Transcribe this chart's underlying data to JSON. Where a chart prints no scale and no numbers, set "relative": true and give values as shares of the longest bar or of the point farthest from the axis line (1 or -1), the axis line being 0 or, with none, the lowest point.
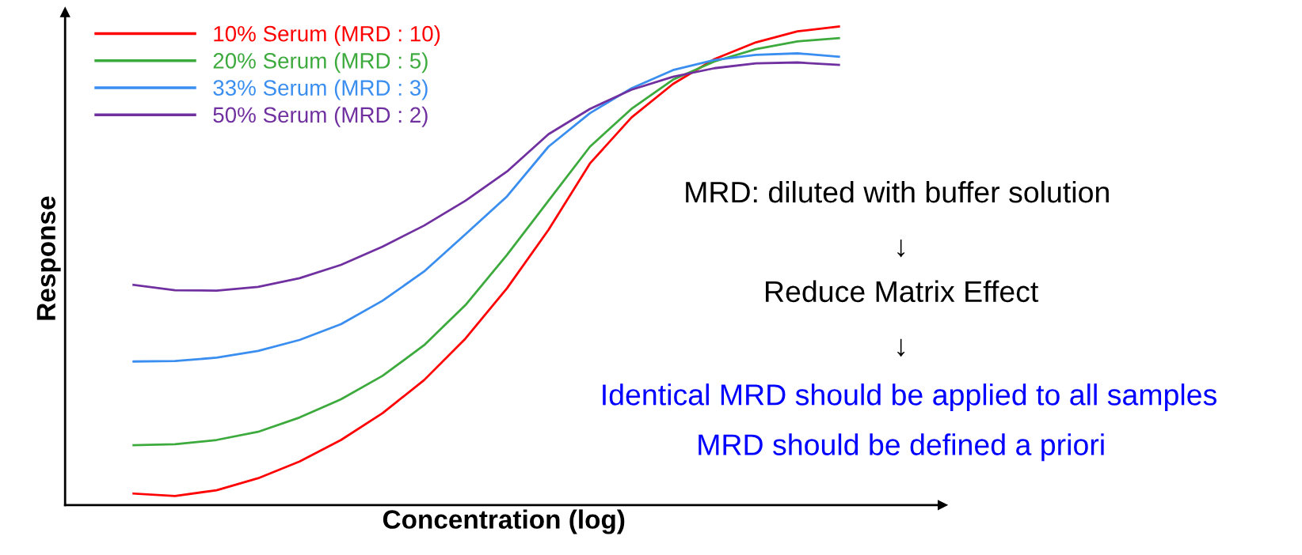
{
  "chart_data": {
    "type": "line",
    "relative": true,
    "xlabel": "Concentration (log)",
    "ylabel": "Response",
    "legend": "top left",
    "marker": "none",
    "line_style": "solid",
    "categories": [
      null,
      null,
      null,
      null,
      null,
      null,
      null,
      null,
      null,
      null,
      null,
      null,
      null,
      null,
      null,
      null,
      null,
      null
    ],
    "series": [
      {
        "name": "10% Serum (MRD : 10)",
        "color": "#ff0000",
        "values": [
          0.024,
          0.019,
          0.031,
          0.056,
          0.091,
          0.136,
          0.192,
          0.261,
          0.348,
          0.453,
          0.575,
          0.714,
          0.81,
          0.88,
          0.932,
          0.967,
          0.99,
          1.0
        ]
      },
      {
        "name": "20% Serum (MRD : 5)",
        "color": "#3daa3d",
        "values": [
          0.125,
          0.127,
          0.136,
          0.153,
          0.183,
          0.221,
          0.27,
          0.334,
          0.418,
          0.523,
          0.636,
          0.749,
          0.828,
          0.889,
          0.927,
          0.953,
          0.969,
          0.976
        ]
      },
      {
        "name": "33% Serum (MRD : 3)",
        "color": "#3a8ef0",
        "values": [
          0.3,
          0.301,
          0.308,
          0.322,
          0.345,
          0.378,
          0.427,
          0.488,
          0.566,
          0.645,
          0.749,
          0.819,
          0.871,
          0.909,
          0.93,
          0.941,
          0.944,
          0.937
        ]
      },
      {
        "name": "50% Serum (MRD : 2)",
        "color": "#7030a0",
        "values": [
          0.46,
          0.449,
          0.448,
          0.456,
          0.474,
          0.502,
          0.54,
          0.584,
          0.636,
          0.697,
          0.775,
          0.828,
          0.868,
          0.895,
          0.913,
          0.923,
          0.925,
          0.92
        ]
      }
    ],
    "annotations": [
      "MRD: diluted with buffer solution",
      "↓",
      "Reduce Matrix Effect",
      "↓",
      "Identical MRD should be applied to all samples",
      "MRD should be defined a priori"
    ]
  }
}
